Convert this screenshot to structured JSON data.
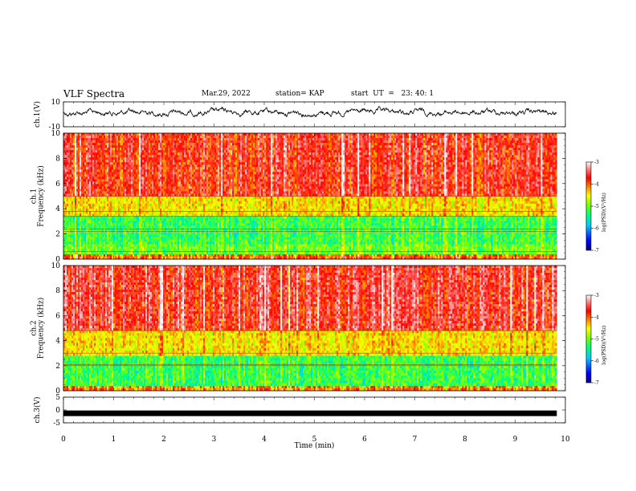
{
  "header": {
    "title": "VLF Spectra",
    "date": "Mar.29, 2022",
    "station": "station= KAP",
    "start": "start  UT  =   23: 40: 1"
  },
  "chart_data": [
    {
      "type": "line",
      "id": "ch1-waveform",
      "ylabel": "ch.1(V)",
      "ylim": [
        -10,
        10
      ],
      "yticks": [
        10,
        -10
      ],
      "x_range_min": [
        0,
        9.83
      ],
      "baseline_v": 2.5,
      "amplitude_v": [
        -3,
        6
      ]
    },
    {
      "type": "heatmap",
      "id": "ch1-spectrogram",
      "ylabel": "ch.1\nFrequency  (kHz)",
      "ylim": [
        0,
        10
      ],
      "yticks": [
        0,
        2,
        4,
        6,
        8,
        10
      ],
      "x_range_min": [
        0,
        9.83
      ],
      "colorbar": {
        "label": "log(PSD)(V²/Hz)",
        "range": [
          -7,
          -3
        ],
        "ticks": [
          -3,
          -4,
          -5,
          -6,
          -7
        ]
      },
      "bands_khz": [
        {
          "from": 0,
          "to": 0.4,
          "level": -4.3
        },
        {
          "from": 0.4,
          "to": 1.2,
          "level": -5.3
        },
        {
          "from": 1.2,
          "to": 3.4,
          "level": -5.5
        },
        {
          "from": 3.4,
          "to": 5.0,
          "level": -4.7
        },
        {
          "from": 5.0,
          "to": 10,
          "level": -3.9
        }
      ],
      "lines_khz": [
        0.6,
        2.2,
        2.4,
        3.4,
        3.8,
        5.0
      ]
    },
    {
      "type": "heatmap",
      "id": "ch2-spectrogram",
      "ylabel": "ch.2\nFrequency  (kHz)",
      "ylim": [
        0,
        10
      ],
      "yticks": [
        0,
        2,
        4,
        6,
        8,
        10
      ],
      "x_range_min": [
        0,
        9.83
      ],
      "colorbar": {
        "label": "log(PSD)(V²/Hz)",
        "range": [
          -7,
          -3
        ],
        "ticks": [
          -3,
          -4,
          -5,
          -6,
          -7
        ]
      },
      "bands_khz": [
        {
          "from": 0,
          "to": 0.4,
          "level": -4.4
        },
        {
          "from": 0.4,
          "to": 2.8,
          "level": -5.5
        },
        {
          "from": 2.8,
          "to": 4.8,
          "level": -4.7
        },
        {
          "from": 4.8,
          "to": 10,
          "level": -3.8
        }
      ],
      "lines_khz": [
        2.0,
        2.1,
        3.0,
        4.8
      ]
    },
    {
      "type": "line",
      "id": "ch3-trace",
      "ylabel": "ch.3(V)",
      "ylim": [
        -5,
        5
      ],
      "yticks": [
        5,
        0,
        -5
      ],
      "x_range_min": [
        0,
        9.83
      ],
      "value_v": -1.3
    }
  ],
  "xaxis": {
    "label": "Time  (min)",
    "range": [
      0,
      10
    ],
    "ticks": [
      0,
      1,
      2,
      3,
      4,
      5,
      6,
      7,
      8,
      9,
      10
    ]
  },
  "colors": {
    "colormap": [
      "#000080",
      "#0000ff",
      "#00c8ff",
      "#00ff80",
      "#80ff00",
      "#ffff00",
      "#ff8000",
      "#ff0000",
      "#ff8080",
      "#ffffff"
    ],
    "trace": "#000000"
  }
}
